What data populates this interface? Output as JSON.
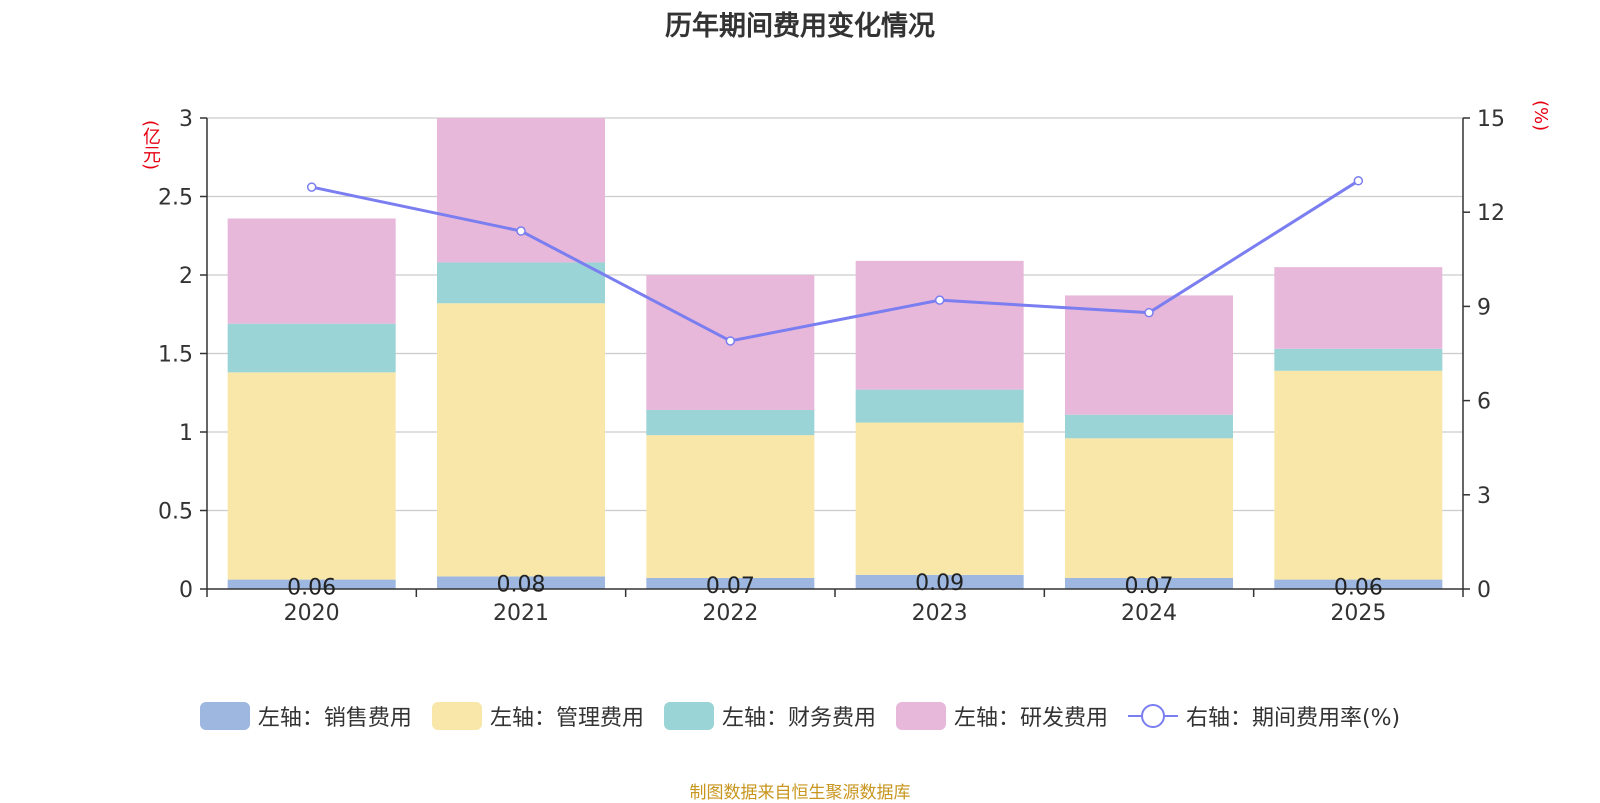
{
  "chart_data": {
    "type": "bar",
    "stacked": true,
    "title": "历年期间费用变化情况",
    "categories": [
      "2020",
      "2021",
      "2022",
      "2023",
      "2024",
      "2025"
    ],
    "left_axis": {
      "unit": "(亿元)",
      "ylim": [
        0,
        3
      ],
      "ticks": [
        "0",
        "0.5",
        "1",
        "1.5",
        "2",
        "2.5",
        "3"
      ]
    },
    "right_axis": {
      "unit": "(%)",
      "ylim": [
        0,
        15
      ],
      "ticks": [
        "0",
        "3",
        "6",
        "9",
        "12",
        "15"
      ]
    },
    "series": [
      {
        "name": "左轴：销售费用",
        "axis": "left",
        "kind": "bar",
        "color": "#9db7e1",
        "values": [
          0.06,
          0.08,
          0.07,
          0.09,
          0.07,
          0.06
        ],
        "labels": [
          "0.06",
          "0.08",
          "0.07",
          "0.09",
          "0.07",
          "0.06"
        ]
      },
      {
        "name": "左轴：管理费用",
        "axis": "left",
        "kind": "bar",
        "color": "#f8e7a8",
        "values": [
          1.32,
          1.74,
          0.91,
          0.97,
          0.89,
          1.33
        ]
      },
      {
        "name": "左轴：财务费用",
        "axis": "left",
        "kind": "bar",
        "color": "#9ad4d6",
        "values": [
          0.31,
          0.26,
          0.16,
          0.21,
          0.15,
          0.14
        ]
      },
      {
        "name": "左轴：研发费用",
        "axis": "left",
        "kind": "bar",
        "color": "#e7b8da",
        "values": [
          0.67,
          0.92,
          0.86,
          0.82,
          0.76,
          0.52
        ]
      },
      {
        "name": "右轴：期间费用率(%)",
        "axis": "right",
        "kind": "line",
        "color": "#7a7ef0",
        "values": [
          12.8,
          11.4,
          7.9,
          9.2,
          8.8,
          13.0
        ]
      }
    ],
    "legend_position": "bottom",
    "grid": true
  },
  "source_note": "制图数据来自恒生聚源数据库"
}
